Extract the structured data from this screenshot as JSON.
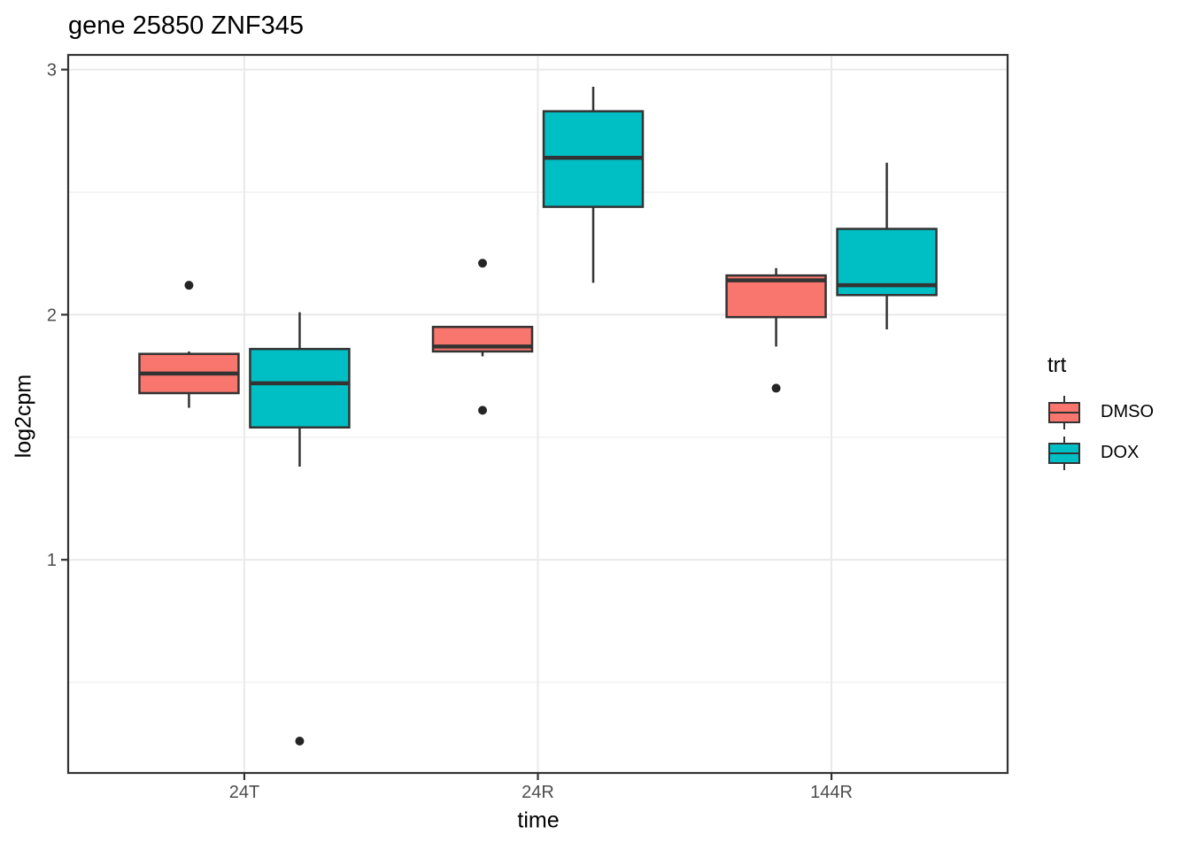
{
  "title": "gene 25850 ZNF345",
  "chart_data": {
    "type": "boxplot",
    "title": "gene 25850 ZNF345",
    "xlabel": "time",
    "ylabel": "log2cpm",
    "categories": [
      "24T",
      "24R",
      "144R"
    ],
    "y_major_ticks": [
      1,
      2,
      3
    ],
    "y_minor_ticks": [
      0.5,
      1.5,
      2.5
    ],
    "ylim": [
      0.13,
      3.06
    ],
    "grid": true,
    "legend": {
      "title": "trt",
      "position": "right",
      "entries": [
        {
          "label": "DMSO",
          "color": "#F8766D"
        },
        {
          "label": "DOX",
          "color": "#00BFC4"
        }
      ]
    },
    "series": [
      {
        "name": "DMSO",
        "color": "#F8766D",
        "boxes": [
          {
            "category": "24T",
            "whisker_low": 1.62,
            "q1": 1.68,
            "median": 1.76,
            "q3": 1.84,
            "whisker_high": 1.85,
            "outliers": [
              2.12
            ]
          },
          {
            "category": "24R",
            "whisker_low": 1.83,
            "q1": 1.85,
            "median": 1.87,
            "q3": 1.95,
            "whisker_high": 1.95,
            "outliers": [
              2.21,
              1.61
            ]
          },
          {
            "category": "144R",
            "whisker_low": 1.87,
            "q1": 1.99,
            "median": 2.14,
            "q3": 2.16,
            "whisker_high": 2.19,
            "outliers": [
              1.7
            ]
          }
        ]
      },
      {
        "name": "DOX",
        "color": "#00BFC4",
        "boxes": [
          {
            "category": "24T",
            "whisker_low": 1.38,
            "q1": 1.54,
            "median": 1.72,
            "q3": 1.86,
            "whisker_high": 2.01,
            "outliers": [
              0.26
            ]
          },
          {
            "category": "24R",
            "whisker_low": 2.13,
            "q1": 2.44,
            "median": 2.64,
            "q3": 2.83,
            "whisker_high": 2.93,
            "outliers": []
          },
          {
            "category": "144R",
            "whisker_low": 1.94,
            "q1": 2.08,
            "median": 2.12,
            "q3": 2.35,
            "whisker_high": 2.62,
            "outliers": []
          }
        ]
      }
    ],
    "style": {
      "box_border": "#333333",
      "median_color": "#333333",
      "whisker_color": "#333333",
      "outlier_color": "#252525",
      "panel_border": "#333333",
      "tick_color": "#333333",
      "grid_major": "#e9e9e9",
      "grid_minor": "#f2f2f2",
      "tick_label_color": "#4d4d4d",
      "axis_title_color": "#000000",
      "background": "#ffffff"
    }
  }
}
